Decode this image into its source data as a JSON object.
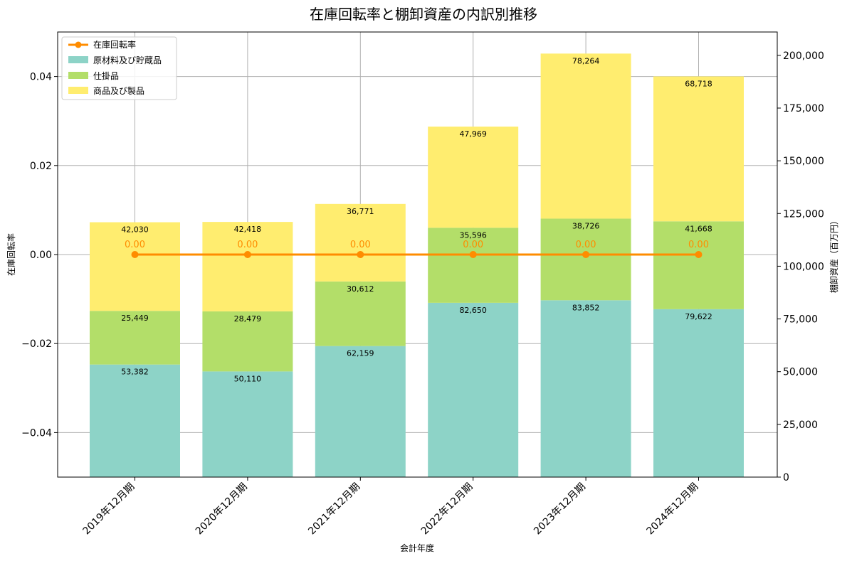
{
  "chart_data": {
    "type": "bar",
    "title": "在庫回転率と棚卸資産の内訳別推移",
    "xlabel": "会計年度",
    "ylabel_left": "在庫回転率",
    "ylabel_right": "棚卸資産（百万円）",
    "categories": [
      "2019年12月期",
      "2020年12月期",
      "2021年12月期",
      "2022年12月期",
      "2023年12月期",
      "2024年12月期"
    ],
    "series": [
      {
        "name": "原材料及び貯蔵品",
        "values": [
          53382,
          50110,
          62159,
          82650,
          83852,
          79622
        ],
        "labels": [
          "53,382",
          "50,110",
          "62,159",
          "82,650",
          "83,852",
          "79,622"
        ],
        "color": "#8dd3c7"
      },
      {
        "name": "仕掛品",
        "values": [
          25449,
          28479,
          30612,
          35596,
          38726,
          41668
        ],
        "labels": [
          "25,449",
          "28,479",
          "30,612",
          "35,596",
          "38,726",
          "41,668"
        ],
        "color": "#b3de69"
      },
      {
        "name": "商品及び製品",
        "values": [
          42030,
          42418,
          36771,
          47969,
          78264,
          68718
        ],
        "labels": [
          "42,030",
          "42,418",
          "36,771",
          "47,969",
          "78,264",
          "68,718"
        ],
        "color": "#ffed6f"
      }
    ],
    "line": {
      "name": "在庫回転率",
      "values": [
        0,
        0,
        0,
        0,
        0,
        0
      ],
      "labels": [
        "0.00",
        "0.00",
        "0.00",
        "0.00",
        "0.00",
        "0.00"
      ],
      "color": "#ff8c00"
    },
    "ylim_left": [
      -0.05,
      0.05
    ],
    "yticks_left": [
      -0.04,
      -0.02,
      0.0,
      0.02,
      0.04
    ],
    "ytick_labels_left": [
      "−0.04",
      "−0.02",
      "0.00",
      "0.02",
      "0.04"
    ],
    "ylim_right": [
      0,
      211076
    ],
    "yticks_right": [
      0,
      25000,
      50000,
      75000,
      100000,
      125000,
      150000,
      175000,
      200000
    ],
    "ytick_labels_right": [
      "0",
      "25,000",
      "50,000",
      "75,000",
      "100,000",
      "125,000",
      "150,000",
      "175,000",
      "200,000"
    ],
    "grid": true,
    "legend_position": "top-left"
  }
}
